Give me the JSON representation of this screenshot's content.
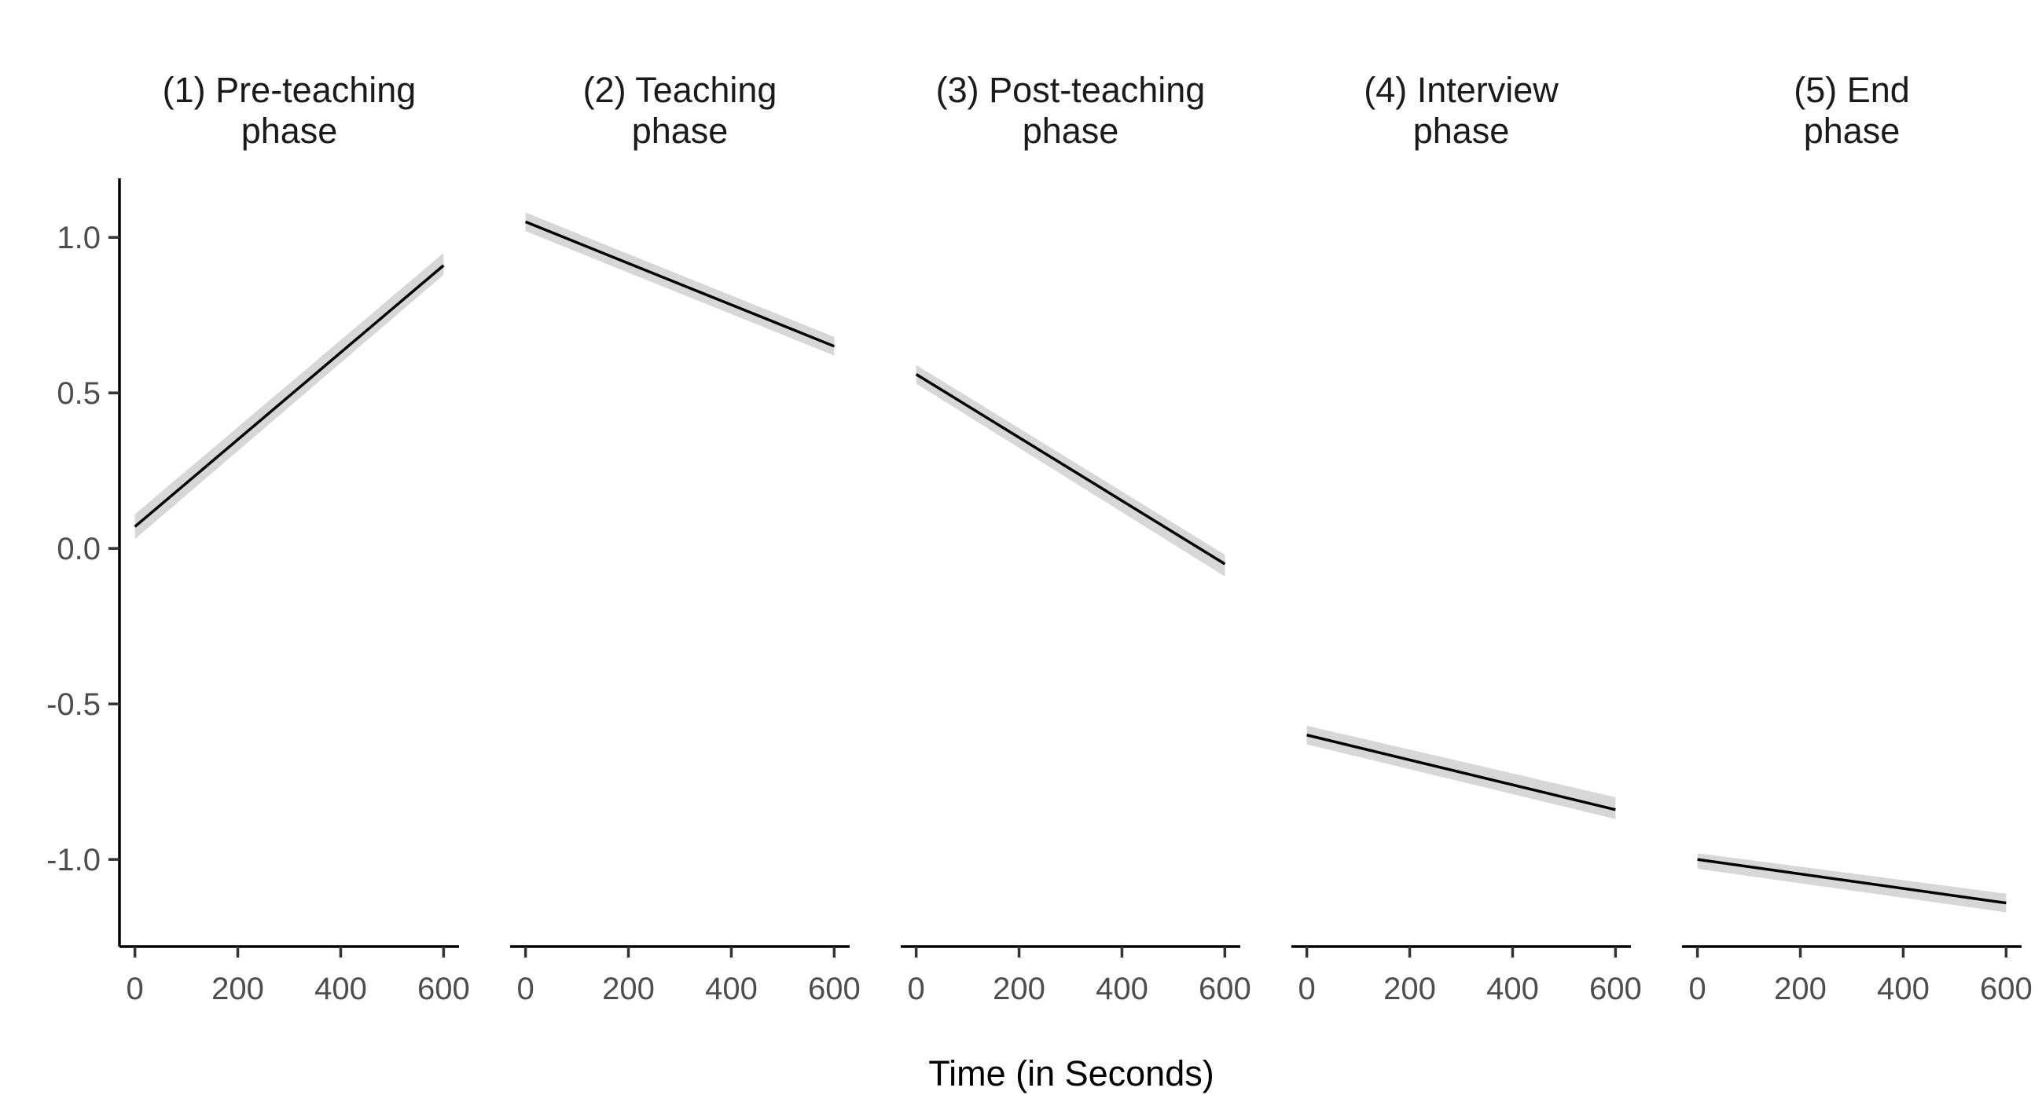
{
  "chart_data": {
    "type": "line",
    "xlabel": "Time (in Seconds)",
    "ylabel": "",
    "xlim": [
      -30,
      630
    ],
    "ylim": [
      -1.28,
      1.19
    ],
    "x_ticks": [
      0,
      200,
      400,
      600
    ],
    "x_tick_labels": [
      "0",
      "200",
      "400",
      "600"
    ],
    "y_ticks": [
      1.0,
      0.5,
      0.0,
      -0.5,
      -1.0
    ],
    "y_tick_labels": [
      "1.0",
      "0.5",
      "0.0",
      "-0.5",
      "-1.0"
    ],
    "grid": false,
    "band_color": "#bdbdbd",
    "line_color": "#000000",
    "facets": [
      {
        "title_lines": [
          "(1) Pre-teaching",
          "phase"
        ],
        "x": [
          0,
          600
        ],
        "y": [
          0.07,
          0.91
        ],
        "ci_lower": [
          0.03,
          0.88
        ],
        "ci_upper": [
          0.11,
          0.95
        ]
      },
      {
        "title_lines": [
          "(2) Teaching",
          "phase"
        ],
        "x": [
          0,
          600
        ],
        "y": [
          1.05,
          0.65
        ],
        "ci_lower": [
          1.02,
          0.62
        ],
        "ci_upper": [
          1.08,
          0.68
        ]
      },
      {
        "title_lines": [
          "(3) Post-teaching",
          "phase"
        ],
        "x": [
          0,
          600
        ],
        "y": [
          0.56,
          -0.05
        ],
        "ci_lower": [
          0.53,
          -0.09
        ],
        "ci_upper": [
          0.59,
          -0.02
        ]
      },
      {
        "title_lines": [
          "(4) Interview",
          "phase"
        ],
        "x": [
          0,
          600
        ],
        "y": [
          -0.6,
          -0.84
        ],
        "ci_lower": [
          -0.63,
          -0.87
        ],
        "ci_upper": [
          -0.57,
          -0.8
        ]
      },
      {
        "title_lines": [
          "(5) End",
          "phase"
        ],
        "x": [
          0,
          600
        ],
        "y": [
          -1.0,
          -1.14
        ],
        "ci_lower": [
          -1.03,
          -1.17
        ],
        "ci_upper": [
          -0.98,
          -1.11
        ]
      }
    ]
  }
}
